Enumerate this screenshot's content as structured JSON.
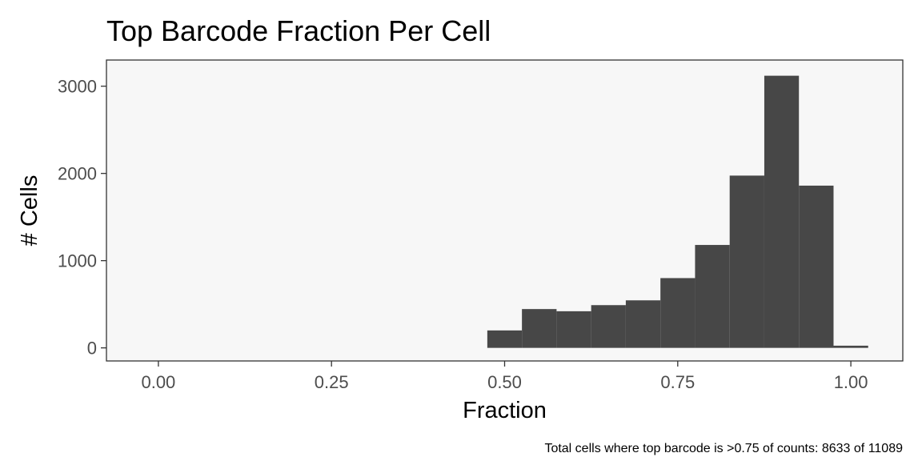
{
  "chart_data": {
    "type": "bar",
    "title": "Top Barcode Fraction Per Cell",
    "xlabel": "Fraction",
    "ylabel": "# Cells",
    "caption": "Total cells where top barcode is >0.75 of counts: 8633 of 11089",
    "xlim": [
      -0.075,
      1.075
    ],
    "ylim": [
      -150,
      3300
    ],
    "x_ticks": [
      0.0,
      0.25,
      0.5,
      0.75,
      1.0
    ],
    "x_tick_labels": [
      "0.00",
      "0.25",
      "0.50",
      "0.75",
      "1.00"
    ],
    "y_ticks": [
      0,
      1000,
      2000,
      3000
    ],
    "y_tick_labels": [
      "0",
      "1000",
      "2000",
      "3000"
    ],
    "bin_width": 0.05,
    "bins": [
      {
        "x": 0.5,
        "count": 200
      },
      {
        "x": 0.55,
        "count": 445
      },
      {
        "x": 0.6,
        "count": 420
      },
      {
        "x": 0.65,
        "count": 490
      },
      {
        "x": 0.7,
        "count": 545
      },
      {
        "x": 0.75,
        "count": 800
      },
      {
        "x": 0.8,
        "count": 1180
      },
      {
        "x": 0.85,
        "count": 1975
      },
      {
        "x": 0.9,
        "count": 3120
      },
      {
        "x": 0.95,
        "count": 1860
      },
      {
        "x": 1.0,
        "count": 25
      }
    ],
    "grid": false,
    "colors": {
      "bar": "#474747",
      "panel_background": "#f7f7f7",
      "panel_border": "#333333",
      "tick_label": "#4d4d4d",
      "axis_title": "#000000"
    }
  }
}
